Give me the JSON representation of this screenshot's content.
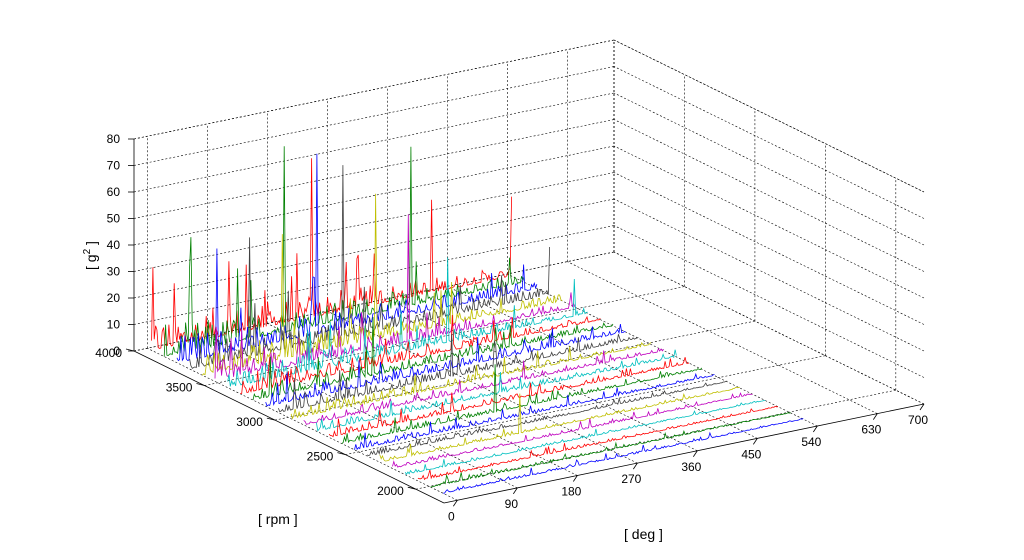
{
  "chart_data": {
    "type": "waterfall",
    "title": "",
    "xlabel": "[ deg ]",
    "ylabel": "[ rpm ]",
    "zlabel_base": "[ g",
    "zlabel_sup": "2",
    "zlabel_end": " ]",
    "xlim": [
      -20,
      700
    ],
    "ylim": [
      1800,
      4000
    ],
    "zlim": [
      0,
      80
    ],
    "xticks": [
      0,
      90,
      180,
      270,
      360,
      450,
      540,
      630,
      700
    ],
    "xtick_labels": [
      "0",
      "90",
      "180",
      "270",
      "360",
      "450",
      "540",
      "630",
      "700"
    ],
    "yticks": [
      2000,
      2500,
      3000,
      3500,
      4000
    ],
    "ytick_labels": [
      "2000",
      "2500",
      "3000",
      "3500",
      "4000"
    ],
    "zticks": [
      0,
      10,
      20,
      30,
      40,
      50,
      60,
      70,
      80
    ],
    "ztick_labels": [
      "0",
      "10",
      "20",
      "30",
      "40",
      "50",
      "60",
      "70",
      "80"
    ],
    "grid": true,
    "series_colors": [
      "#0000ff",
      "#008000",
      "#ff0000",
      "#00bfbf",
      "#bf00bf",
      "#bfbf00",
      "#404040"
    ],
    "rpm_traces": [
      1900,
      1990,
      2080,
      2170,
      2260,
      2350,
      2440,
      2530,
      2620,
      2710,
      2800,
      2890,
      2980,
      3070,
      3160,
      3250,
      3340,
      3430,
      3520,
      3610,
      3700,
      3790,
      3880,
      3970
    ],
    "angle_range_deg": [
      0,
      540
    ],
    "peaks": [
      {
        "rpm": 3880,
        "deg": 40,
        "g2": 43
      },
      {
        "rpm": 3790,
        "deg": 60,
        "g2": 40
      },
      {
        "rpm": 3700,
        "deg": 90,
        "g2": 45
      },
      {
        "rpm": 3610,
        "deg": 120,
        "g2": 47
      },
      {
        "rpm": 3880,
        "deg": 180,
        "g2": 70
      },
      {
        "rpm": 3790,
        "deg": 210,
        "g2": 68
      },
      {
        "rpm": 3700,
        "deg": 230,
        "g2": 65
      },
      {
        "rpm": 3970,
        "deg": 240,
        "g2": 60
      },
      {
        "rpm": 3610,
        "deg": 260,
        "g2": 55
      },
      {
        "rpm": 3520,
        "deg": 290,
        "g2": 48
      },
      {
        "rpm": 3880,
        "deg": 370,
        "g2": 60
      },
      {
        "rpm": 3970,
        "deg": 420,
        "g2": 35
      },
      {
        "rpm": 3430,
        "deg": 330,
        "g2": 32
      },
      {
        "rpm": 3250,
        "deg": 180,
        "g2": 22
      },
      {
        "rpm": 3070,
        "deg": 260,
        "g2": 16
      },
      {
        "rpm": 2620,
        "deg": 230,
        "g2": 18
      },
      {
        "rpm": 2350,
        "deg": 210,
        "g2": 15
      },
      {
        "rpm": 3970,
        "deg": 540,
        "g2": 30
      },
      {
        "rpm": 3700,
        "deg": 540,
        "g2": 18
      },
      {
        "rpm": 3430,
        "deg": 520,
        "g2": 14
      }
    ]
  }
}
